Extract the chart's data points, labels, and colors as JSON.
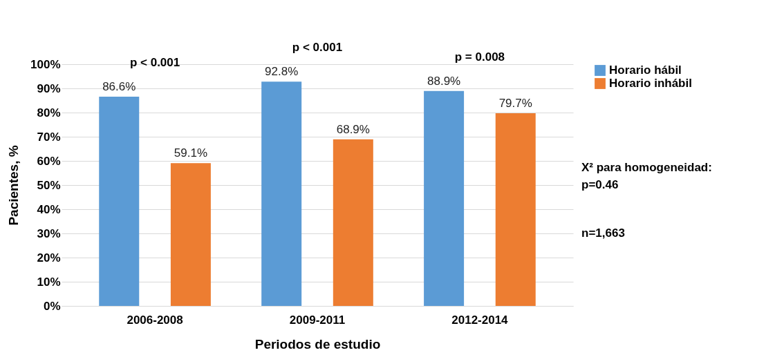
{
  "chart_data": {
    "type": "bar",
    "categories": [
      "2006-2008",
      "2009-2011",
      "2012-2014"
    ],
    "series": [
      {
        "name": "Horario hábil",
        "color": "#5b9bd5",
        "values": [
          86.6,
          92.8,
          88.9
        ],
        "value_labels": [
          "86.6%",
          "92.8%",
          "88.9%"
        ]
      },
      {
        "name": "Horario inhábil",
        "color": "#ed7d31",
        "values": [
          59.1,
          68.9,
          79.7
        ],
        "value_labels": [
          "59.1%",
          "68.9%",
          "79.7%"
        ]
      }
    ],
    "xlabel": "Periodos de estudio",
    "ylabel": "Pacientes, %",
    "ylim": [
      0,
      100
    ],
    "yticks": [
      {
        "value": 0,
        "label": "0%"
      },
      {
        "value": 10,
        "label": "10%"
      },
      {
        "value": 20,
        "label": "20%"
      },
      {
        "value": 30,
        "label": "30%"
      },
      {
        "value": 40,
        "label": "40%"
      },
      {
        "value": 50,
        "label": "50%"
      },
      {
        "value": 60,
        "label": "60%"
      },
      {
        "value": 70,
        "label": "70%"
      },
      {
        "value": 80,
        "label": "80%"
      },
      {
        "value": 90,
        "label": "90%"
      },
      {
        "value": 100,
        "label": "100%"
      }
    ],
    "grid": "y",
    "legend": "right",
    "annotations": [
      "p < 0.001",
      "p < 0.001",
      "p = 0.008",
      "X² para homogeneidad:",
      "p=0.46",
      "n=1,663"
    ]
  }
}
